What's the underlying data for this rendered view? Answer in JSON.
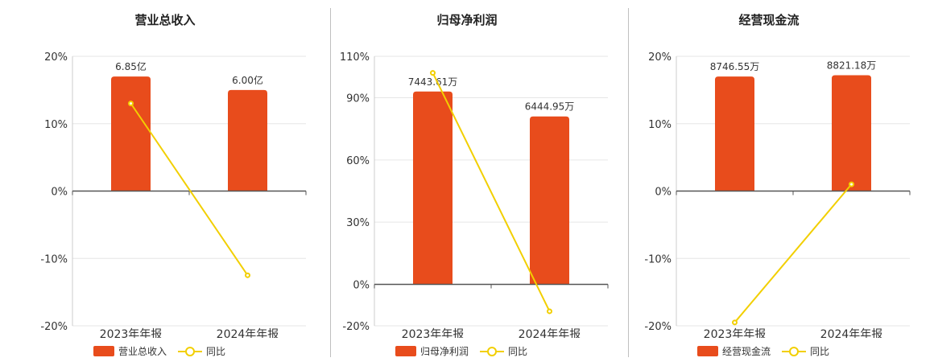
{
  "chart_data": [
    {
      "type": "bar",
      "title": "营业总收入",
      "categories": [
        "2023年年报",
        "2024年年报"
      ],
      "series": [
        {
          "name": "营业总收入",
          "kind": "bar",
          "values": [
            17,
            15
          ],
          "labels": [
            "6.85亿",
            "6.00亿"
          ]
        },
        {
          "name": "同比",
          "kind": "line",
          "values": [
            13,
            -12.5
          ]
        }
      ],
      "ylim": [
        -20,
        20
      ],
      "yticks": [
        20,
        10,
        0,
        -10,
        -20
      ],
      "ytick_labels": [
        "20%",
        "10%",
        "0%",
        "-10%",
        "-20%"
      ],
      "grid": true
    },
    {
      "type": "bar",
      "title": "归母净利润",
      "categories": [
        "2023年年报",
        "2024年年报"
      ],
      "series": [
        {
          "name": "归母净利润",
          "kind": "bar",
          "values": [
            93,
            81
          ],
          "labels": [
            "7443.61万",
            "6444.95万"
          ]
        },
        {
          "name": "同比",
          "kind": "line",
          "values": [
            102,
            -13
          ]
        }
      ],
      "ylim": [
        -20,
        110
      ],
      "yticks": [
        110,
        90,
        60,
        30,
        0,
        -20
      ],
      "ytick_labels": [
        "110%",
        "90%",
        "60%",
        "30%",
        "0%",
        "-20%"
      ],
      "grid": true
    },
    {
      "type": "bar",
      "title": "经营现金流",
      "categories": [
        "2023年年报",
        "2024年年报"
      ],
      "series": [
        {
          "name": "经营现金流",
          "kind": "bar",
          "values": [
            17,
            17.2
          ],
          "labels": [
            "8746.55万",
            "8821.18万"
          ]
        },
        {
          "name": "同比",
          "kind": "line",
          "values": [
            -19.5,
            1
          ]
        }
      ],
      "ylim": [
        -20,
        20
      ],
      "yticks": [
        20,
        10,
        0,
        -10,
        -20
      ],
      "ytick_labels": [
        "20%",
        "10%",
        "0%",
        "-10%",
        "-20%"
      ],
      "grid": true
    }
  ],
  "colors": {
    "bar": "#e84c1c",
    "line": "#f2cf00",
    "axis": "#555555",
    "grid": "#e6e6e6"
  },
  "legend": {
    "bar_icon": "rounded-rect-swatch",
    "line_icon": "line-circle-marker"
  }
}
